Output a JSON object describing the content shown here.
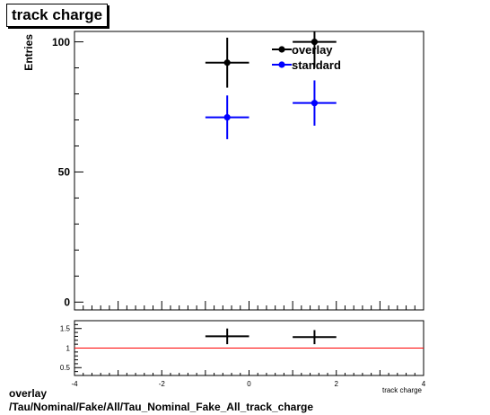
{
  "title": "track charge",
  "footer": {
    "line1": "overlay",
    "line2": "/Tau/Nominal/Fake/All/Tau_Nominal_Fake_All_track_charge"
  },
  "chart_data": [
    {
      "type": "scatter",
      "ylabel": "Entries",
      "xlabel": "track charge",
      "xlim": [
        -4,
        4
      ],
      "ylim": [
        -3,
        104
      ],
      "y_ticks": [
        0,
        50,
        100
      ],
      "legend": {
        "placement": "top-right",
        "entries": [
          "overlay",
          "standard"
        ]
      },
      "series": [
        {
          "name": "overlay",
          "color": "#000000",
          "points": [
            {
              "x": -0.5,
              "y": 92,
              "xerr": 0.5,
              "yerr": 9.6
            },
            {
              "x": 1.5,
              "y": 100,
              "xerr": 0.5,
              "yerr": 10
            }
          ]
        },
        {
          "name": "standard",
          "color": "#0000ff",
          "points": [
            {
              "x": -0.5,
              "y": 71,
              "xerr": 0.5,
              "yerr": 8.4
            },
            {
              "x": 1.5,
              "y": 76.5,
              "xerr": 0.5,
              "yerr": 8.7
            }
          ]
        }
      ]
    },
    {
      "type": "scatter",
      "xlabel": "track charge",
      "xlim": [
        -4,
        4
      ],
      "x_ticks": [
        -4,
        -2,
        0,
        2,
        4
      ],
      "ylim": [
        0.3,
        1.7
      ],
      "y_ticks": [
        0.5,
        1,
        1.5
      ],
      "reference_line": {
        "y": 1,
        "color": "#ff0000"
      },
      "series": [
        {
          "color": "#000000",
          "points": [
            {
              "x": -0.5,
              "y": 1.3,
              "xerr": 0.5,
              "yerr": 0.2
            },
            {
              "x": 1.5,
              "y": 1.28,
              "xerr": 0.5,
              "yerr": 0.18
            }
          ]
        }
      ]
    }
  ]
}
